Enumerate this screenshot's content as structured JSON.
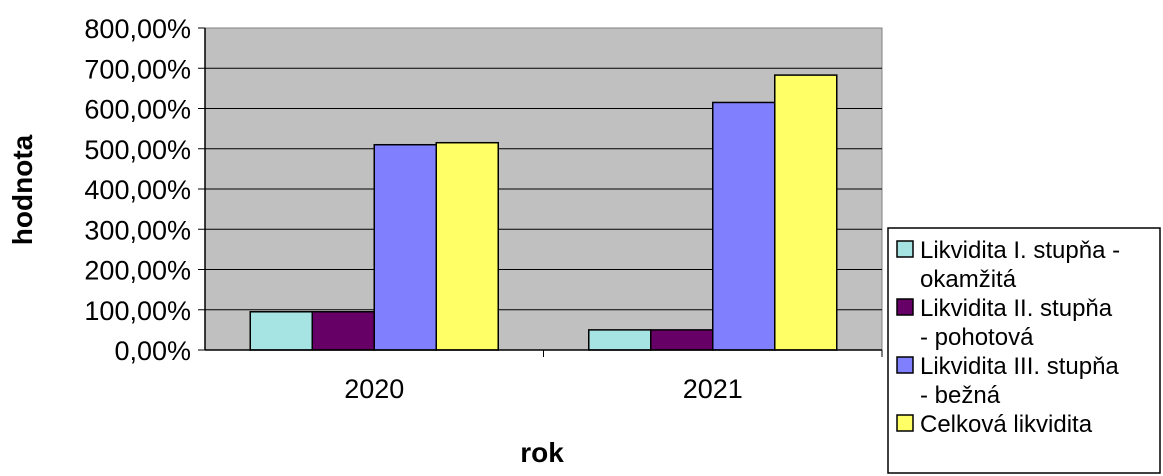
{
  "chart_data": {
    "type": "bar",
    "title": "",
    "xlabel": "rok",
    "ylabel": "hodnota",
    "categories": [
      "2020",
      "2021"
    ],
    "ylim": [
      0,
      800
    ],
    "y_ticks": [
      "0,00%",
      "100,00%",
      "200,00%",
      "300,00%",
      "400,00%",
      "500,00%",
      "600,00%",
      "700,00%",
      "800,00%"
    ],
    "grid": true,
    "legend_position": "right",
    "series": [
      {
        "name": "Likvidita I. stupňa - okamžitá",
        "legend_lines": [
          "Likvidita I. stupňa -",
          "okamžitá"
        ],
        "color": "#a6e3e3",
        "values": [
          95,
          50
        ]
      },
      {
        "name": "Likvidita II. stupňa - pohotová",
        "legend_lines": [
          "Likvidita II. stupňa",
          "- pohotová"
        ],
        "color": "#660066",
        "values": [
          95,
          50
        ]
      },
      {
        "name": "Likvidita III. stupňa - bežná",
        "legend_lines": [
          "Likvidita III. stupňa",
          "- bežná"
        ],
        "color": "#8080ff",
        "values": [
          510,
          615
        ]
      },
      {
        "name": "Celková likvidita",
        "legend_lines": [
          "Celková likvidita"
        ],
        "color": "#ffff66",
        "values": [
          515,
          683
        ]
      }
    ],
    "plot_background": "#c0c0c0"
  }
}
